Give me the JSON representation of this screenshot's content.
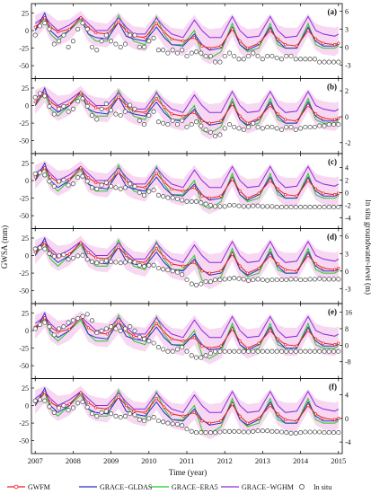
{
  "figure": {
    "left_axis_label": "GWSA (mm)",
    "right_axis_label": "In situ groundwater-level (m)",
    "x_axis_label": "Time (year)"
  },
  "legend": {
    "items": [
      {
        "name": "GWFM",
        "color": "#e8231e",
        "marker": "circle"
      },
      {
        "name": "GRACE−GLDAS",
        "color": "#2233cc",
        "marker": "none"
      },
      {
        "name": "GRACE−ERA5",
        "color": "#22cc22",
        "marker": "none"
      },
      {
        "name": "GRACE−WGHM",
        "color": "#8a2be2",
        "marker": "none"
      },
      {
        "name": "In situ",
        "color": "#555555",
        "marker": "open-circle"
      }
    ]
  },
  "colors": {
    "uncertainty_band": "#f7d7f1"
  },
  "chart_data": [
    {
      "type": "line",
      "panel_label": "(a)",
      "x_ticks": [
        2007,
        2008,
        2009,
        2010,
        2011,
        2012,
        2013,
        2014,
        2015
      ],
      "xlim": [
        2006.9,
        2015.1
      ],
      "left_ticks": [
        25,
        0,
        -25,
        -50
      ],
      "left_ylim": [
        -62,
        32
      ],
      "right_ticks": [
        6,
        3,
        0,
        -3
      ],
      "right_ylim": [
        -4.5,
        6.5
      ],
      "in_situ": {
        "x0": 2007.0,
        "step": 0.125,
        "values": [
          2.0,
          3.5,
          4.0,
          3.0,
          0.5,
          1.0,
          2.0,
          0.0,
          1.0,
          3.0,
          4.0,
          3.0,
          0.0,
          -0.5,
          1.0,
          2.0,
          1.0,
          0.5,
          0.0,
          0.5,
          2.0,
          2.0,
          0.0,
          0.0,
          1.0,
          1.5,
          -0.5,
          -0.5,
          -1.0,
          -0.5,
          -1.0,
          -0.5,
          -1.5,
          -1.0,
          -0.8,
          -1.0,
          -1.5,
          -1.5,
          -2.5,
          -2.5,
          -1.5,
          -1.0,
          -1.5,
          -2.0,
          -2.0,
          -1.5,
          -1.0,
          -1.5,
          -2.0,
          -1.5,
          -1.5,
          -1.8,
          -2.0,
          -1.5,
          -1.5,
          -2.0,
          -2.0,
          -2.0,
          -2.0,
          -2.0,
          -2.5,
          -2.5,
          -2.5,
          -2.5,
          -2.5
        ]
      }
    },
    {
      "type": "line",
      "panel_label": "(b)",
      "x_ticks": [
        2007,
        2008,
        2009,
        2010,
        2011,
        2012,
        2013,
        2014,
        2015
      ],
      "xlim": [
        2006.9,
        2015.1
      ],
      "left_ticks": [
        25,
        0,
        -25,
        -50
      ],
      "left_ylim": [
        -62,
        32
      ],
      "right_ticks": [
        2,
        0,
        -2
      ],
      "right_ylim": [
        -2.5,
        2.6
      ],
      "in_situ": {
        "x0": 2007.0,
        "step": 0.125,
        "values": [
          1.5,
          1.8,
          1.6,
          0.8,
          0.2,
          0.6,
          0.8,
          0.4,
          0.6,
          1.2,
          1.4,
          0.8,
          0.1,
          -0.2,
          0.6,
          1.0,
          0.5,
          0.2,
          0.1,
          0.4,
          0.9,
          0.6,
          -0.3,
          -0.6,
          0.1,
          0.4,
          -0.4,
          -0.5,
          -0.6,
          -0.3,
          -0.6,
          -0.3,
          -0.8,
          -0.6,
          -0.4,
          -0.7,
          -1.0,
          -1.2,
          -1.5,
          -1.4,
          -0.9,
          -0.6,
          -0.8,
          -0.9,
          -1.0,
          -0.8,
          -0.5,
          -0.8,
          -0.9,
          -0.8,
          -0.8,
          -0.9,
          -1.0,
          -0.8,
          -0.8,
          -1.0,
          -0.9,
          -0.8,
          -0.8,
          -0.8,
          -0.7,
          -0.7,
          -0.6,
          -0.6,
          -0.6
        ]
      }
    },
    {
      "type": "line",
      "panel_label": "(c)",
      "x_ticks": [
        2007,
        2008,
        2009,
        2010,
        2011,
        2012,
        2013,
        2014,
        2015
      ],
      "xlim": [
        2006.9,
        2015.1
      ],
      "left_ticks": [
        25,
        0,
        -25,
        -50
      ],
      "left_ylim": [
        -62,
        32
      ],
      "right_ticks": [
        4,
        2,
        0,
        -2,
        -4
      ],
      "right_ylim": [
        -5.0,
        5.5
      ],
      "in_situ": {
        "x0": 2007.0,
        "step": 0.125,
        "values": [
          3.0,
          3.2,
          2.8,
          1.8,
          1.0,
          1.8,
          2.0,
          1.2,
          1.4,
          2.4,
          2.6,
          1.8,
          0.8,
          0.6,
          1.2,
          1.6,
          1.0,
          0.8,
          0.6,
          0.8,
          1.4,
          1.0,
          0.0,
          -0.4,
          0.2,
          0.4,
          -0.4,
          -0.6,
          -0.8,
          -0.8,
          -1.0,
          -1.2,
          -1.4,
          -1.4,
          -1.4,
          -1.6,
          -1.8,
          -2.0,
          -2.2,
          -2.2,
          -2.2,
          -2.0,
          -2.0,
          -2.1,
          -2.2,
          -2.2,
          -2.1,
          -2.1,
          -2.2,
          -2.2,
          -2.2,
          -2.3,
          -2.3,
          -2.3,
          -2.3,
          -2.3,
          -2.3,
          -2.3,
          -2.3,
          -2.3,
          -2.3,
          -2.3,
          -2.3,
          -2.3,
          -2.3
        ]
      }
    },
    {
      "type": "line",
      "panel_label": "(d)",
      "x_ticks": [
        2007,
        2008,
        2009,
        2010,
        2011,
        2012,
        2013,
        2014,
        2015
      ],
      "xlim": [
        2006.9,
        2015.1
      ],
      "left_ticks": [
        25,
        0,
        -25,
        -50
      ],
      "left_ylim": [
        -62,
        32
      ],
      "right_ticks": [
        6,
        3,
        0,
        -3
      ],
      "right_ylim": [
        -4.8,
        6.5
      ],
      "in_situ": {
        "x0": 2007.0,
        "step": 0.125,
        "values": [
          3.8,
          4.0,
          3.8,
          3.0,
          2.5,
          2.6,
          2.8,
          2.0,
          2.2,
          2.6,
          2.7,
          2.0,
          1.6,
          1.4,
          1.6,
          1.8,
          1.6,
          1.5,
          1.4,
          1.5,
          1.7,
          1.5,
          1.0,
          0.8,
          1.0,
          1.0,
          0.5,
          0.3,
          0.2,
          0.0,
          -0.2,
          -0.6,
          -1.5,
          -2.2,
          -2.4,
          -2.2,
          -1.8,
          -1.8,
          -1.5,
          -1.5,
          -1.4,
          -1.3,
          -1.2,
          -1.3,
          -1.4,
          -1.6,
          -1.5,
          -1.4,
          -1.5,
          -1.6,
          -1.5,
          -1.5,
          -1.5,
          -1.5,
          -1.4,
          -1.4,
          -1.5,
          -1.5,
          -1.4,
          -1.4,
          -1.3,
          -1.4,
          -1.4,
          -1.4,
          -1.4
        ]
      }
    },
    {
      "type": "line",
      "panel_label": "(e)",
      "x_ticks": [
        2007,
        2008,
        2009,
        2010,
        2011,
        2012,
        2013,
        2014,
        2015
      ],
      "xlim": [
        2006.9,
        2015.1
      ],
      "left_ticks": [
        25,
        0,
        -25,
        -50
      ],
      "left_ylim": [
        -62,
        32
      ],
      "right_ticks": [
        16,
        8,
        0,
        -8
      ],
      "right_ylim": [
        -14,
        18
      ],
      "in_situ": {
        "x0": 2007.0,
        "step": 0.125,
        "values": [
          8,
          10,
          11,
          9,
          5,
          8,
          9,
          11,
          12,
          13,
          14,
          15,
          12,
          6,
          7,
          8,
          9,
          8,
          7,
          8,
          9,
          7,
          4,
          3,
          2,
          1,
          -1,
          -2,
          -3,
          -3,
          -2,
          -1,
          -3,
          -5,
          -6,
          -6,
          -5,
          -4,
          -3,
          -3,
          -3,
          -3,
          -3,
          -3,
          -3,
          -3,
          -3,
          -3,
          -3,
          -3,
          -3,
          -3,
          -3,
          -3,
          -3,
          -3,
          -3,
          -3,
          -3,
          -3,
          -3,
          -3,
          -3,
          -3,
          -3
        ]
      }
    },
    {
      "type": "line",
      "panel_label": "(f)",
      "x_ticks": [
        2007,
        2008,
        2009,
        2010,
        2011,
        2012,
        2013,
        2014,
        2015
      ],
      "xlim": [
        2006.9,
        2015.1
      ],
      "left_ticks": [
        25,
        0,
        -25,
        -50
      ],
      "left_ylim": [
        -62,
        32
      ],
      "right_ticks": [
        4,
        0,
        -4
      ],
      "right_ylim": [
        -5.2,
        6.0
      ],
      "in_situ": {
        "x0": 2007.0,
        "step": 0.125,
        "values": [
          3.0,
          3.2,
          3.0,
          2.0,
          1.0,
          1.8,
          2.2,
          1.4,
          1.8,
          2.6,
          2.8,
          1.9,
          0.8,
          0.4,
          1.0,
          1.2,
          0.8,
          0.4,
          0.2,
          0.4,
          0.8,
          0.6,
          -0.2,
          -0.4,
          0.0,
          0.2,
          -0.4,
          -0.6,
          -0.8,
          -0.9,
          -1.0,
          -1.2,
          -1.8,
          -2.2,
          -2.4,
          -2.4,
          -2.4,
          -2.4,
          -2.4,
          -2.3,
          -2.2,
          -2.2,
          -2.2,
          -2.2,
          -2.3,
          -2.3,
          -2.2,
          -2.1,
          -2.1,
          -2.1,
          -2.2,
          -2.2,
          -2.3,
          -2.4,
          -2.5,
          -2.5,
          -2.4,
          -2.3,
          -2.3,
          -2.3,
          -2.3,
          -2.4,
          -2.4,
          -2.4,
          -2.4
        ]
      }
    }
  ],
  "model_series": {
    "x": [
      2007.0,
      2007.25,
      2007.4,
      2007.6,
      2007.9,
      2008.2,
      2008.4,
      2008.6,
      2008.9,
      2009.2,
      2009.4,
      2009.6,
      2009.9,
      2010.2,
      2010.4,
      2010.6,
      2010.9,
      2011.2,
      2011.4,
      2011.6,
      2011.9,
      2012.2,
      2012.4,
      2012.6,
      2012.9,
      2013.2,
      2013.4,
      2013.6,
      2013.9,
      2014.2,
      2014.4,
      2014.6,
      2014.9,
      2015.0
    ],
    "gwfm": [
      5,
      18,
      5,
      -2,
      2,
      18,
      4,
      -3,
      -5,
      12,
      0,
      -8,
      -10,
      10,
      -2,
      -12,
      -15,
      -10,
      -22,
      -25,
      -22,
      2,
      -15,
      -25,
      -18,
      0,
      -12,
      -20,
      -22,
      0,
      -12,
      -18,
      -20,
      -18
    ],
    "gldas": [
      0,
      25,
      0,
      -10,
      0,
      20,
      -5,
      -10,
      -12,
      12,
      -8,
      -12,
      -15,
      5,
      -10,
      -20,
      -22,
      -5,
      -20,
      -28,
      -25,
      5,
      -20,
      -28,
      -20,
      5,
      -15,
      -25,
      -25,
      5,
      -15,
      -22,
      -22,
      -20
    ],
    "era5": [
      0,
      18,
      -5,
      -15,
      0,
      15,
      -5,
      -15,
      -15,
      22,
      0,
      -15,
      -20,
      20,
      -5,
      -20,
      -20,
      0,
      -35,
      -40,
      -30,
      10,
      -20,
      -30,
      -25,
      10,
      -20,
      -25,
      -25,
      10,
      -20,
      -25,
      -25,
      -22
    ],
    "wghm": [
      10,
      20,
      10,
      0,
      8,
      20,
      10,
      0,
      0,
      18,
      5,
      -5,
      -5,
      18,
      5,
      -5,
      -10,
      15,
      0,
      -10,
      -10,
      20,
      0,
      -10,
      -8,
      20,
      0,
      -10,
      -8,
      20,
      0,
      -5,
      -8,
      -5
    ],
    "band_upper": [
      22,
      28,
      22,
      14,
      16,
      28,
      16,
      12,
      10,
      26,
      14,
      6,
      4,
      24,
      12,
      4,
      2,
      22,
      8,
      2,
      4,
      24,
      8,
      2,
      4,
      24,
      8,
      4,
      4,
      24,
      10,
      6,
      4,
      6
    ],
    "band_lower": [
      -12,
      4,
      -14,
      -22,
      -14,
      4,
      -16,
      -22,
      -24,
      -4,
      -20,
      -26,
      -30,
      -6,
      -22,
      -32,
      -36,
      -20,
      -42,
      -48,
      -40,
      -8,
      -32,
      -40,
      -34,
      -8,
      -28,
      -36,
      -36,
      -8,
      -28,
      -34,
      -36,
      -32
    ]
  }
}
